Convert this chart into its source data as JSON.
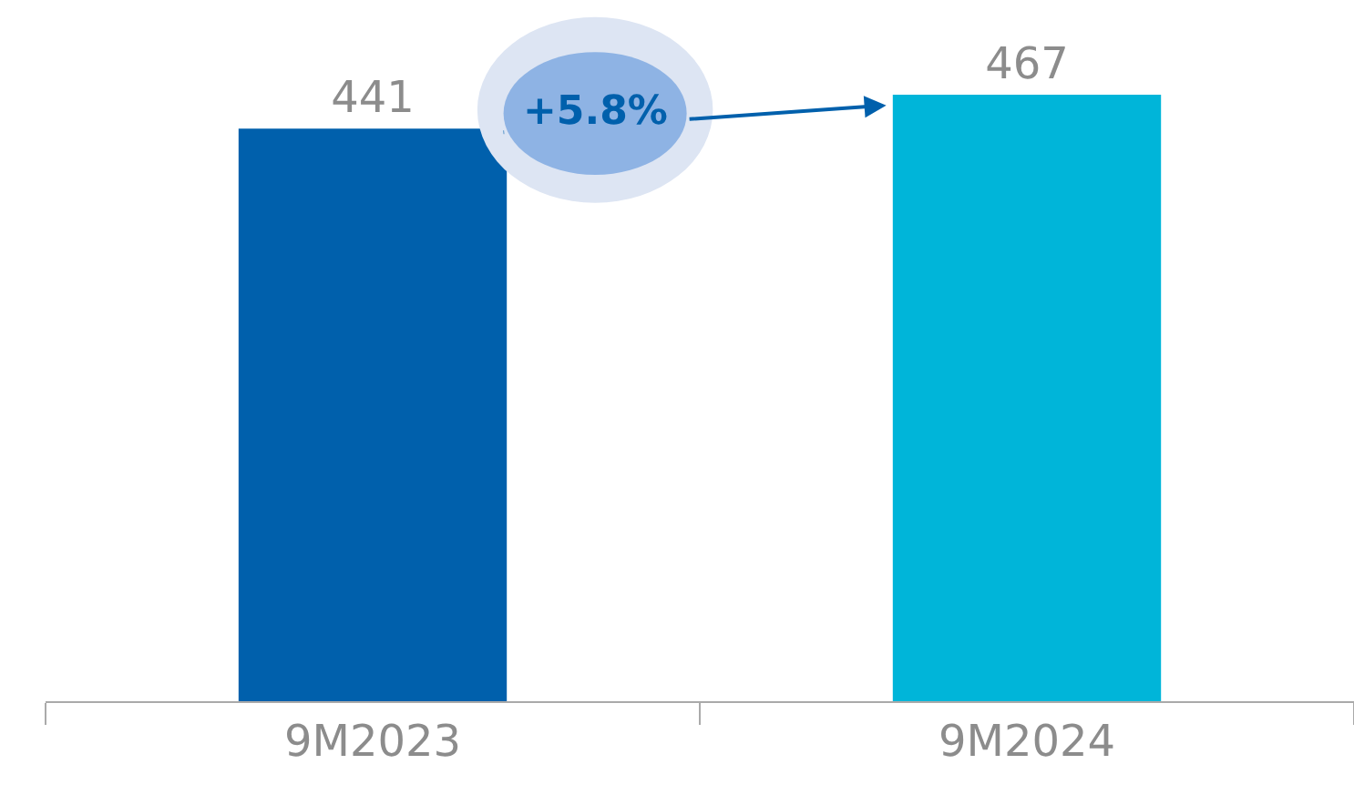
{
  "chart_data": {
    "type": "bar",
    "categories": [
      "9M2023",
      "9M2024"
    ],
    "colors": [
      "#0060ac",
      "#00b5d9"
    ],
    "values": [
      441,
      467
    ],
    "data_labels": true,
    "ylim": [
      0,
      540
    ],
    "tick_labels": "x",
    "annotations": [
      "+5.8%"
    ]
  }
}
